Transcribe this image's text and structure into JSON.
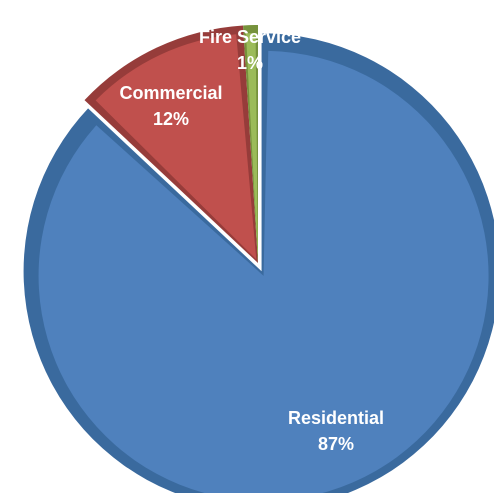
{
  "chart_data": {
    "type": "pie",
    "title": "",
    "start_angle_deg": 0,
    "direction": "clockwise",
    "style": "exploded-3d-bevel",
    "slices": [
      {
        "name": "Residential",
        "value": 87,
        "label": "87%",
        "color": "#4F81BD",
        "edge_color": "#3A6A9E",
        "exploded": true
      },
      {
        "name": "Commercial",
        "value": 12,
        "label": "12%",
        "color": "#C0504D",
        "edge_color": "#963C3A",
        "exploded": false
      },
      {
        "name": "Fire Service",
        "value": 1,
        "label": "1%",
        "color": "#9BBB59",
        "edge_color": "#76923C",
        "exploded": false
      }
    ]
  }
}
